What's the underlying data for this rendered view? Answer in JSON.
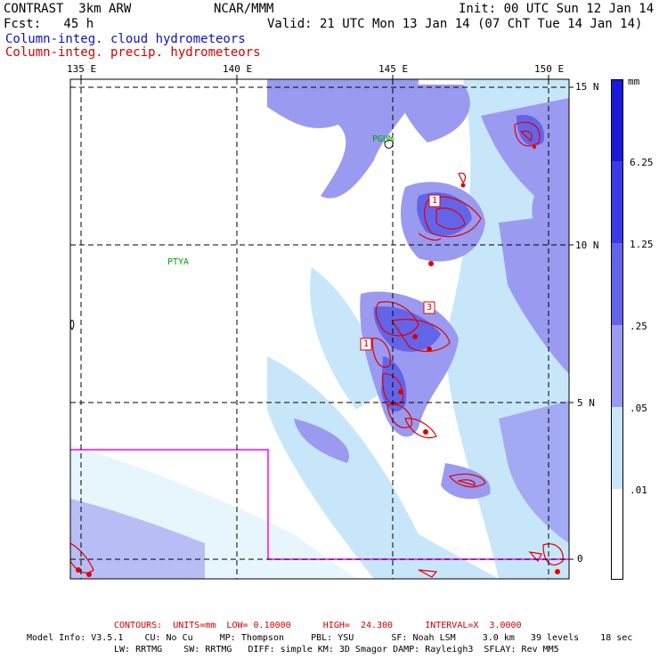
{
  "header": {
    "model": "CONTRAST  3km ARW",
    "org": "NCAR/MMM",
    "init": "Init: 00 UTC Sun 12 Jan 14",
    "fcst": "Fcst:   45 h",
    "valid": "Valid: 21 UTC Mon 13 Jan 14 (07 ChT Tue 14 Jan 14)",
    "field1": "Column-integ. cloud hydrometeors",
    "field2": "Column-integ. precip. hydrometeors"
  },
  "axes": {
    "lon_labels": [
      "135 E",
      "140 E",
      "145 E",
      "150 E"
    ],
    "lat_labels": [
      "15 N",
      "10 N",
      "5 N",
      "0"
    ]
  },
  "stations": [
    {
      "name": "PGUM"
    },
    {
      "name": "PTYA"
    }
  ],
  "contour_labels": [
    "1",
    "1",
    "3"
  ],
  "colorbar": {
    "units": "mm",
    "labels": [
      "6.25",
      "1.25",
      ".25",
      ".05",
      ".01"
    ],
    "colors": [
      "#1a1ad8",
      "#3a3ae8",
      "#6464e8",
      "#9a9af0",
      "#c8e6fa",
      "#e6f6fc",
      "#ffffff"
    ]
  },
  "footer": {
    "contours": "CONTOURS:  UNITS=mm  LOW= 0.10000      HIGH=  24.300      INTERVAL=X  3.0000",
    "model_info": "Model Info: V3.5.1    CU: No Cu     MP: Thompson     PBL: YSU       SF: Noah LSM     3.0 km   39 levels    18 sec",
    "model_info2": "LW: RRTMG    SW: RRTMG   DIFF: simple KM: 3D Smagor DAMP: Rayleigh3  SFLAY: Rev MM5"
  },
  "colors": {
    "cloud_light": "#c8e6fa",
    "cloud_mid": "#9a9af0",
    "cloud_dark": "#6464e8",
    "precip_contour": "#e00000",
    "domain_box": "#ff00ff"
  }
}
